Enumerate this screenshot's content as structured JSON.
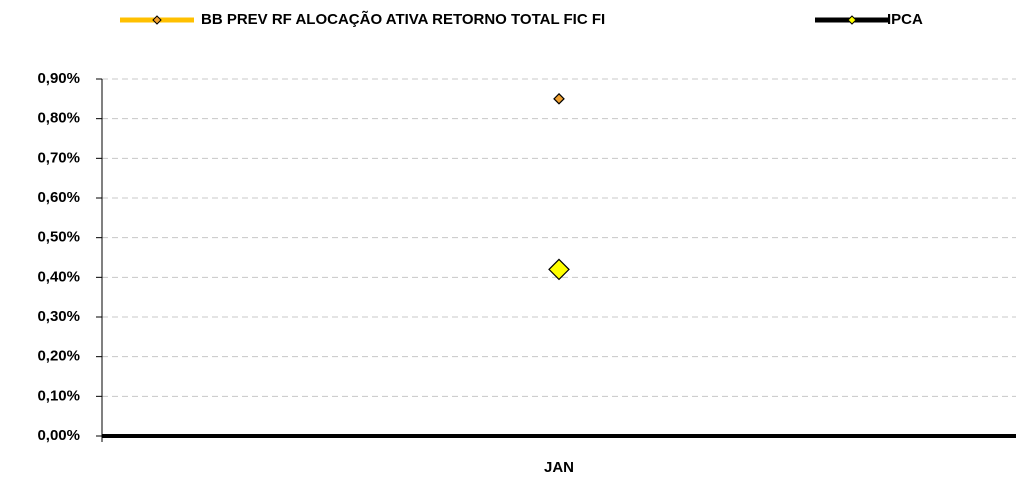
{
  "chart_data": {
    "type": "line",
    "categories": [
      "JAN"
    ],
    "series": [
      {
        "name": "BB PREV RF ALOCAÇÃO ATIVA RETORNO TOTAL FIC FI",
        "color": "#ffc000",
        "marker_color": "#f0a030",
        "values": [
          0.85
        ]
      },
      {
        "name": "IPCA",
        "color": "#000000",
        "marker_color": "#ffff00",
        "values": [
          0.42
        ]
      }
    ],
    "ylim": [
      0,
      0.9
    ],
    "yticks": [
      {
        "value": 0,
        "label": "0,00%"
      },
      {
        "value": 0.1,
        "label": "0,10%"
      },
      {
        "value": 0.2,
        "label": "0,20%"
      },
      {
        "value": 0.3,
        "label": "0,30%"
      },
      {
        "value": 0.4,
        "label": "0,40%"
      },
      {
        "value": 0.5,
        "label": "0,50%"
      },
      {
        "value": 0.6,
        "label": "0,60%"
      },
      {
        "value": 0.7,
        "label": "0,70%"
      },
      {
        "value": 0.8,
        "label": "0,80%"
      },
      {
        "value": 0.9,
        "label": "0,90%"
      }
    ],
    "grid": true,
    "legend": "top"
  }
}
